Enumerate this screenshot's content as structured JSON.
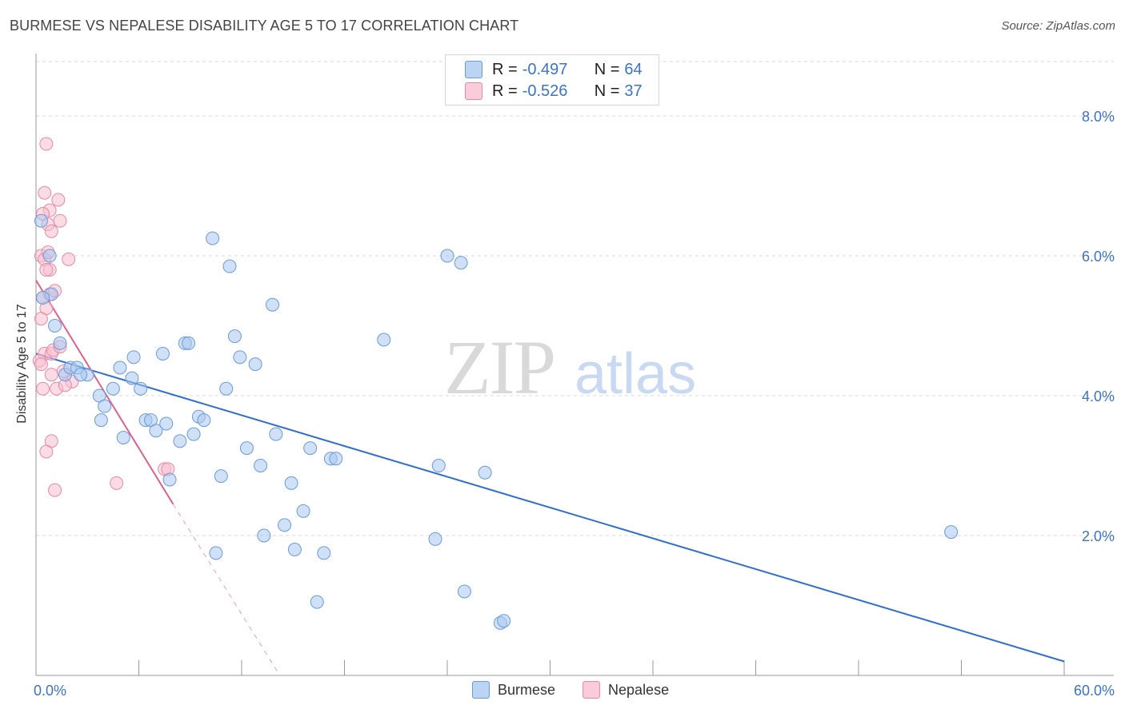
{
  "title": "BURMESE VS NEPALESE DISABILITY AGE 5 TO 17 CORRELATION CHART",
  "source": "Source: ZipAtlas.com",
  "watermark": {
    "zip": "ZIP",
    "atlas": "atlas"
  },
  "legend_top": [
    {
      "label": "R =",
      "r": "-0.497",
      "n_label": "N =",
      "n": "64"
    },
    {
      "label": "R =",
      "r": "-0.526",
      "n_label": "N =",
      "n": "37"
    }
  ],
  "legend_bottom": [
    "Burmese",
    "Nepalese"
  ],
  "colors": {
    "burmese_fill": "#a9c8f0",
    "burmese_stroke": "#6b9bd8",
    "burmese_line": "#2e6fd0",
    "nepalese_fill": "#f8bfd0",
    "nepalese_stroke": "#e58aa8",
    "nepalese_line": "#e0608a",
    "axis_text": "#3b73c9",
    "grid": "#d8d8d8"
  },
  "chart_data": {
    "type": "scatter",
    "title": "BURMESE VS NEPALESE DISABILITY AGE 5 TO 17 CORRELATION CHART",
    "xlabel": "",
    "ylabel": "Disability Age 5 to 17",
    "xlim": [
      0,
      60
    ],
    "ylim": [
      0,
      8.8
    ],
    "x_tick_labels": [
      "0.0%",
      "60.0%"
    ],
    "y_ticks": [
      2,
      4,
      6,
      8
    ],
    "y_tick_labels": [
      "2.0%",
      "4.0%",
      "6.0%",
      "8.0%"
    ],
    "grid": true,
    "legend_position": "top-center",
    "series": [
      {
        "name": "Burmese",
        "points": [
          [
            0.3,
            6.5
          ],
          [
            0.8,
            6.0
          ],
          [
            0.9,
            5.45
          ],
          [
            1.1,
            5.0
          ],
          [
            1.4,
            4.75
          ],
          [
            1.7,
            4.3
          ],
          [
            2.0,
            4.4
          ],
          [
            2.4,
            4.4
          ],
          [
            3.0,
            4.3
          ],
          [
            2.6,
            4.3
          ],
          [
            3.7,
            4.0
          ],
          [
            4.0,
            3.85
          ],
          [
            3.8,
            3.65
          ],
          [
            4.5,
            4.1
          ],
          [
            4.9,
            4.4
          ],
          [
            5.1,
            3.4
          ],
          [
            5.6,
            4.25
          ],
          [
            5.7,
            4.55
          ],
          [
            6.1,
            4.1
          ],
          [
            6.4,
            3.65
          ],
          [
            6.7,
            3.65
          ],
          [
            7.0,
            3.5
          ],
          [
            7.4,
            4.6
          ],
          [
            7.6,
            3.6
          ],
          [
            7.8,
            2.8
          ],
          [
            8.4,
            3.35
          ],
          [
            8.7,
            4.75
          ],
          [
            8.9,
            4.75
          ],
          [
            9.2,
            3.45
          ],
          [
            9.5,
            3.7
          ],
          [
            9.8,
            3.65
          ],
          [
            10.3,
            6.25
          ],
          [
            10.5,
            1.75
          ],
          [
            10.8,
            2.85
          ],
          [
            11.1,
            4.1
          ],
          [
            11.3,
            5.85
          ],
          [
            11.6,
            4.85
          ],
          [
            11.9,
            4.55
          ],
          [
            12.3,
            3.25
          ],
          [
            12.8,
            4.45
          ],
          [
            13.1,
            3.0
          ],
          [
            13.3,
            2.0
          ],
          [
            13.8,
            5.3
          ],
          [
            14.0,
            3.45
          ],
          [
            14.5,
            2.15
          ],
          [
            14.9,
            2.75
          ],
          [
            15.1,
            1.8
          ],
          [
            15.6,
            2.35
          ],
          [
            16.0,
            3.25
          ],
          [
            16.4,
            1.05
          ],
          [
            16.8,
            1.75
          ],
          [
            17.2,
            3.1
          ],
          [
            17.5,
            3.1
          ],
          [
            20.3,
            4.8
          ],
          [
            23.3,
            1.95
          ],
          [
            23.5,
            3.0
          ],
          [
            24.0,
            6.0
          ],
          [
            24.8,
            5.9
          ],
          [
            25.0,
            1.2
          ],
          [
            26.2,
            2.9
          ],
          [
            27.1,
            0.75
          ],
          [
            27.3,
            0.78
          ],
          [
            53.4,
            2.05
          ],
          [
            0.4,
            5.4
          ]
        ],
        "trendline": {
          "x": [
            0,
            60
          ],
          "y": [
            4.6,
            0.2
          ]
        }
      },
      {
        "name": "Nepalese",
        "points": [
          [
            0.6,
            7.6
          ],
          [
            0.5,
            6.9
          ],
          [
            0.8,
            6.65
          ],
          [
            1.3,
            6.8
          ],
          [
            1.4,
            6.5
          ],
          [
            0.4,
            6.6
          ],
          [
            0.7,
            6.45
          ],
          [
            0.9,
            6.35
          ],
          [
            0.3,
            6.0
          ],
          [
            0.5,
            5.95
          ],
          [
            0.8,
            5.8
          ],
          [
            0.6,
            5.8
          ],
          [
            0.7,
            6.05
          ],
          [
            1.9,
            5.95
          ],
          [
            0.4,
            5.4
          ],
          [
            0.8,
            5.45
          ],
          [
            1.1,
            5.5
          ],
          [
            0.6,
            5.25
          ],
          [
            0.3,
            5.1
          ],
          [
            0.5,
            4.6
          ],
          [
            0.9,
            4.6
          ],
          [
            1.0,
            4.65
          ],
          [
            1.4,
            4.7
          ],
          [
            0.2,
            4.5
          ],
          [
            0.3,
            4.45
          ],
          [
            0.9,
            4.3
          ],
          [
            1.6,
            4.35
          ],
          [
            2.1,
            4.2
          ],
          [
            0.4,
            4.1
          ],
          [
            1.2,
            4.1
          ],
          [
            0.9,
            3.35
          ],
          [
            0.6,
            3.2
          ],
          [
            1.1,
            2.65
          ],
          [
            4.7,
            2.75
          ],
          [
            7.5,
            2.95
          ],
          [
            7.7,
            2.95
          ],
          [
            1.7,
            4.15
          ]
        ],
        "trendline": {
          "x": [
            0,
            8
          ],
          "y": [
            5.65,
            2.45
          ]
        },
        "trendline_extension": {
          "x": [
            8,
            14.1
          ],
          "y": [
            2.45,
            0.05
          ]
        }
      }
    ]
  }
}
